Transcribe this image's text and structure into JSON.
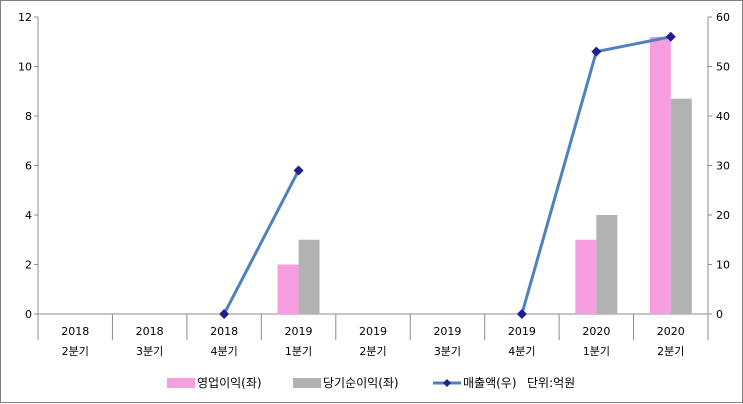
{
  "chart_data": {
    "type": "bar",
    "categories": [
      [
        "2018",
        "2분기"
      ],
      [
        "2018",
        "3분기"
      ],
      [
        "2018",
        "4분기"
      ],
      [
        "2019",
        "1분기"
      ],
      [
        "2019",
        "2분기"
      ],
      [
        "2019",
        "3분기"
      ],
      [
        "2019",
        "4분기"
      ],
      [
        "2020",
        "1분기"
      ],
      [
        "2020",
        "2분기"
      ]
    ],
    "y_left": {
      "ylim": [
        0,
        12
      ],
      "ticks": [
        0,
        2,
        4,
        6,
        8,
        10,
        12
      ]
    },
    "y_right": {
      "ylim": [
        0,
        60
      ],
      "ticks": [
        0,
        10,
        20,
        30,
        40,
        50,
        60
      ]
    },
    "series": [
      {
        "name": "영업이익(좌)",
        "type": "bar",
        "axis": "left",
        "color": "#f79ee0",
        "values": [
          null,
          null,
          null,
          2,
          null,
          null,
          null,
          3,
          11.2
        ]
      },
      {
        "name": "당기순이익(좌)",
        "type": "bar",
        "axis": "left",
        "color": "#b2b2b2",
        "values": [
          null,
          null,
          null,
          3,
          null,
          null,
          null,
          4,
          8.7
        ]
      },
      {
        "name": "매출액(우)",
        "type": "line",
        "axis": "right",
        "color": "#4f81bd",
        "marker_color": "#1f1f8f",
        "values": [
          null,
          null,
          0,
          29,
          null,
          null,
          0,
          53,
          56
        ]
      }
    ],
    "legend_position": "bottom",
    "annotation": "단위:억원",
    "grid": false
  }
}
